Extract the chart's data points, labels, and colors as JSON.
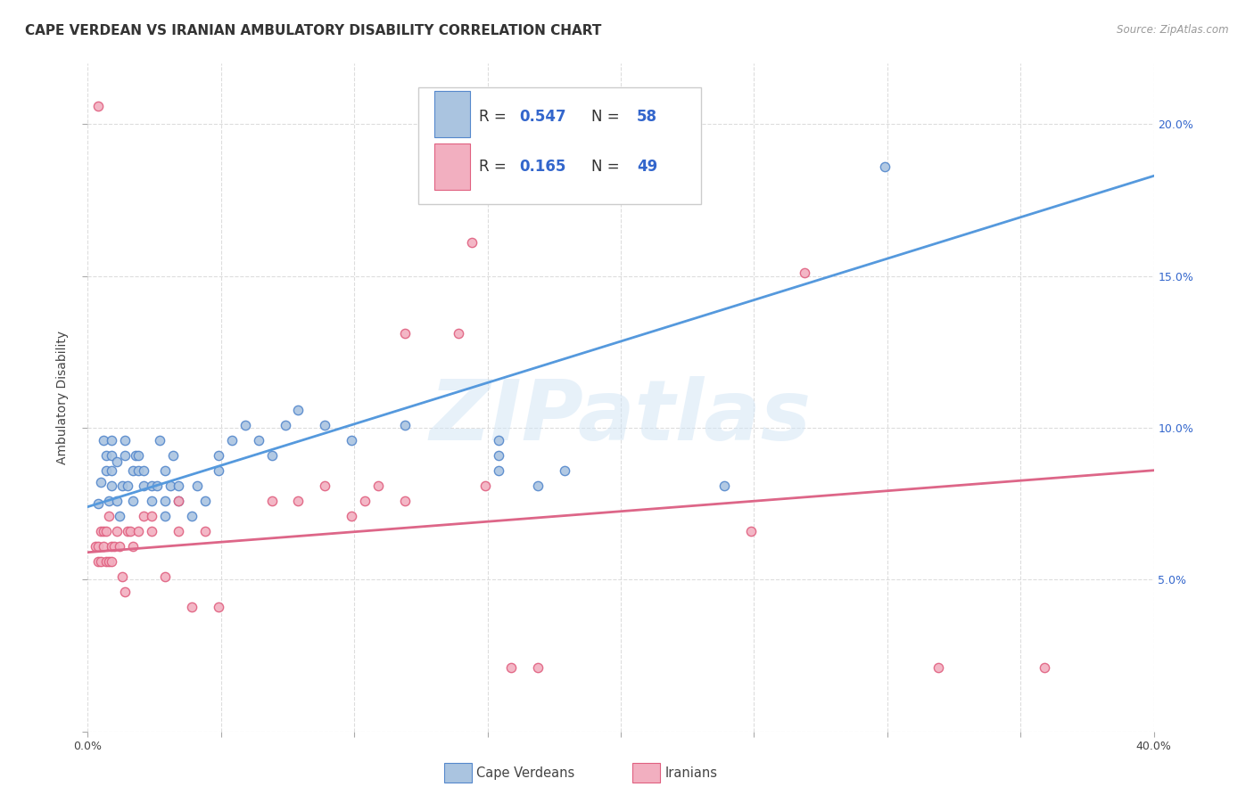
{
  "title": "CAPE VERDEAN VS IRANIAN AMBULATORY DISABILITY CORRELATION CHART",
  "source": "Source: ZipAtlas.com",
  "ylabel": "Ambulatory Disability",
  "watermark": "ZIPatlas",
  "xlim": [
    0.0,
    0.4
  ],
  "ylim": [
    0.0,
    0.22
  ],
  "xticks": [
    0.0,
    0.05,
    0.1,
    0.15,
    0.2,
    0.25,
    0.3,
    0.35,
    0.4
  ],
  "yticks": [
    0.0,
    0.05,
    0.1,
    0.15,
    0.2
  ],
  "legend_r_values": [
    "0.547",
    "0.165"
  ],
  "legend_n_values": [
    "58",
    "49"
  ],
  "cv_color": "#aac4e0",
  "ir_color": "#f2afc0",
  "cv_edge_color": "#5588cc",
  "ir_edge_color": "#e06080",
  "cv_line_color": "#5599dd",
  "ir_line_color": "#dd6688",
  "legend_number_color": "#3366cc",
  "cv_scatter": [
    [
      0.004,
      0.075
    ],
    [
      0.005,
      0.082
    ],
    [
      0.006,
      0.096
    ],
    [
      0.007,
      0.086
    ],
    [
      0.007,
      0.091
    ],
    [
      0.008,
      0.076
    ],
    [
      0.009,
      0.096
    ],
    [
      0.009,
      0.091
    ],
    [
      0.009,
      0.086
    ],
    [
      0.009,
      0.081
    ],
    [
      0.011,
      0.076
    ],
    [
      0.011,
      0.089
    ],
    [
      0.012,
      0.071
    ],
    [
      0.013,
      0.081
    ],
    [
      0.014,
      0.096
    ],
    [
      0.014,
      0.091
    ],
    [
      0.015,
      0.081
    ],
    [
      0.017,
      0.076
    ],
    [
      0.017,
      0.086
    ],
    [
      0.018,
      0.091
    ],
    [
      0.019,
      0.086
    ],
    [
      0.019,
      0.091
    ],
    [
      0.021,
      0.081
    ],
    [
      0.021,
      0.086
    ],
    [
      0.024,
      0.081
    ],
    [
      0.024,
      0.076
    ],
    [
      0.026,
      0.081
    ],
    [
      0.027,
      0.096
    ],
    [
      0.029,
      0.071
    ],
    [
      0.029,
      0.076
    ],
    [
      0.029,
      0.086
    ],
    [
      0.031,
      0.081
    ],
    [
      0.032,
      0.091
    ],
    [
      0.034,
      0.076
    ],
    [
      0.034,
      0.081
    ],
    [
      0.039,
      0.071
    ],
    [
      0.041,
      0.081
    ],
    [
      0.044,
      0.076
    ],
    [
      0.049,
      0.091
    ],
    [
      0.049,
      0.086
    ],
    [
      0.054,
      0.096
    ],
    [
      0.059,
      0.101
    ],
    [
      0.064,
      0.096
    ],
    [
      0.069,
      0.091
    ],
    [
      0.074,
      0.101
    ],
    [
      0.079,
      0.106
    ],
    [
      0.089,
      0.101
    ],
    [
      0.099,
      0.096
    ],
    [
      0.119,
      0.101
    ],
    [
      0.129,
      0.176
    ],
    [
      0.154,
      0.086
    ],
    [
      0.154,
      0.091
    ],
    [
      0.154,
      0.096
    ],
    [
      0.169,
      0.081
    ],
    [
      0.179,
      0.086
    ],
    [
      0.219,
      0.181
    ],
    [
      0.239,
      0.081
    ],
    [
      0.299,
      0.186
    ]
  ],
  "ir_scatter": [
    [
      0.003,
      0.061
    ],
    [
      0.004,
      0.056
    ],
    [
      0.004,
      0.061
    ],
    [
      0.005,
      0.066
    ],
    [
      0.005,
      0.056
    ],
    [
      0.006,
      0.066
    ],
    [
      0.006,
      0.061
    ],
    [
      0.007,
      0.066
    ],
    [
      0.007,
      0.056
    ],
    [
      0.008,
      0.071
    ],
    [
      0.008,
      0.056
    ],
    [
      0.009,
      0.061
    ],
    [
      0.009,
      0.056
    ],
    [
      0.01,
      0.061
    ],
    [
      0.011,
      0.066
    ],
    [
      0.012,
      0.061
    ],
    [
      0.013,
      0.051
    ],
    [
      0.014,
      0.046
    ],
    [
      0.015,
      0.066
    ],
    [
      0.016,
      0.066
    ],
    [
      0.017,
      0.061
    ],
    [
      0.019,
      0.066
    ],
    [
      0.021,
      0.071
    ],
    [
      0.024,
      0.066
    ],
    [
      0.024,
      0.071
    ],
    [
      0.029,
      0.051
    ],
    [
      0.034,
      0.066
    ],
    [
      0.034,
      0.076
    ],
    [
      0.039,
      0.041
    ],
    [
      0.044,
      0.066
    ],
    [
      0.049,
      0.041
    ],
    [
      0.069,
      0.076
    ],
    [
      0.079,
      0.076
    ],
    [
      0.089,
      0.081
    ],
    [
      0.099,
      0.071
    ],
    [
      0.104,
      0.076
    ],
    [
      0.109,
      0.081
    ],
    [
      0.119,
      0.076
    ],
    [
      0.139,
      0.131
    ],
    [
      0.144,
      0.161
    ],
    [
      0.159,
      0.021
    ],
    [
      0.169,
      0.021
    ],
    [
      0.249,
      0.066
    ],
    [
      0.269,
      0.151
    ],
    [
      0.004,
      0.206
    ],
    [
      0.119,
      0.131
    ],
    [
      0.319,
      0.021
    ],
    [
      0.359,
      0.021
    ],
    [
      0.149,
      0.081
    ]
  ],
  "cv_line": [
    [
      0.0,
      0.074
    ],
    [
      0.4,
      0.183
    ]
  ],
  "ir_line": [
    [
      0.0,
      0.059
    ],
    [
      0.4,
      0.086
    ]
  ],
  "background_color": "#ffffff",
  "grid_color": "#dddddd",
  "title_fontsize": 11,
  "axis_label_fontsize": 10,
  "tick_fontsize": 9,
  "legend_fontsize": 12,
  "right_ytick_color": "#3366cc"
}
